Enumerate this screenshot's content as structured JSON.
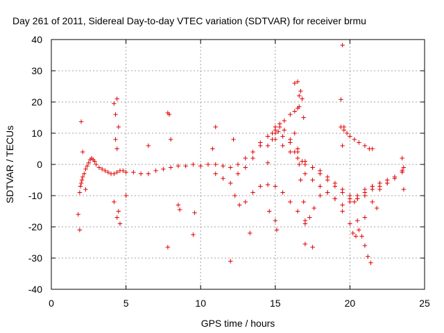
{
  "chart_data": {
    "type": "scatter",
    "title": "Day 261 of 2011, Sidereal Day-to-day VTEC variation (SDTVAR) for receiver brmu",
    "xlabel": "GPS time / hours",
    "ylabel": "SDTVAR / TECUs",
    "xlim": [
      0,
      25
    ],
    "ylim": [
      -40,
      40
    ],
    "xticks": [
      0,
      5,
      10,
      15,
      20,
      25
    ],
    "yticks": [
      -40,
      -30,
      -20,
      -10,
      0,
      10,
      20,
      30,
      40
    ],
    "grid": true,
    "marker": "+",
    "color": "#e00000",
    "series": [
      {
        "name": "SDTVAR",
        "x": [
          1.9,
          1.95,
          2.0,
          2.05,
          2.1,
          2.2,
          2.3,
          2.4,
          2.5,
          2.6,
          2.7,
          2.8,
          2.9,
          3.0,
          3.2,
          3.4,
          3.6,
          3.8,
          4.0,
          4.2,
          4.4,
          4.6,
          4.8,
          5.0,
          5.5,
          6.0,
          6.5,
          7.0,
          7.5,
          8.0,
          8.5,
          9.0,
          9.5,
          10.0,
          10.5,
          11.0,
          11.5,
          12.0,
          12.5,
          13.0,
          13.5,
          14.0,
          14.5,
          14.8,
          15.0,
          15.2,
          15.5,
          16.0,
          16.5,
          17.0,
          17.5,
          18.0,
          18.5,
          19.0,
          19.5,
          20.0,
          20.3,
          20.5,
          21.0,
          21.5,
          22.0,
          22.5,
          23.0,
          23.5,
          23.6
        ],
        "y": [
          -9,
          -7,
          -6,
          -5,
          -4,
          -3,
          -1.5,
          -0.5,
          0.5,
          1.5,
          2.0,
          1.5,
          1.0,
          0,
          -1.0,
          -1.5,
          -2.0,
          -2.5,
          -3.0,
          -3.0,
          -2.5,
          -2.0,
          -2.0,
          -2.5,
          -2.5,
          -3.0,
          -3.0,
          -2.0,
          -1.5,
          -1.0,
          -0.5,
          -0.5,
          0,
          -0.5,
          0,
          0,
          -0.5,
          -1.0,
          0,
          2.0,
          4.0,
          7.0,
          9.0,
          10.0,
          11.0,
          10.5,
          9.0,
          7.0,
          4.0,
          1.0,
          -1.0,
          -3.0,
          -5.0,
          -7.0,
          -9.0,
          -11.0,
          -12.0,
          -11.0,
          -9.0,
          -7.0,
          -6.0,
          -5.0,
          -4.0,
          -2.0,
          -1.0
        ]
      },
      {
        "name": "SDTVAR",
        "x": [
          11.0,
          11.5,
          12.0,
          12.3,
          12.6,
          13.0,
          13.5,
          14.0,
          14.5,
          15.0,
          15.5,
          16.0,
          16.5,
          17.0,
          17.3,
          17.6,
          18.0,
          18.5,
          19.0,
          19.5,
          20.0,
          20.2,
          20.4,
          20.6,
          21.0,
          21.5,
          22.0,
          22.5,
          23.0,
          23.5
        ],
        "y": [
          -3.0,
          -4.5,
          -6.0,
          -10.0,
          -13.0,
          -12.0,
          -9.0,
          -7.0,
          -6.5,
          -7.0,
          -9.0,
          -12.0,
          -15.0,
          -18.0,
          -17.0,
          -14.0,
          -10.0,
          -9.0,
          -11.0,
          -15.0,
          -19.0,
          -22.0,
          -23.0,
          -21.0,
          -17.0,
          -12.0,
          -8.0,
          -6.0,
          -4.0,
          -2.0
        ]
      },
      {
        "name": "SDTVAR",
        "x": [
          12.5,
          13.0,
          13.5,
          14.0,
          14.5,
          15.0,
          15.3,
          15.6,
          16.0,
          16.3,
          16.6,
          17.0,
          17.5,
          18.0,
          18.5,
          19.0,
          19.5,
          20.0,
          20.5,
          21.0,
          21.5,
          22.0
        ],
        "y": [
          -3.0,
          -1.0,
          2.0,
          6.0,
          9.0,
          12.0,
          13.0,
          11.0,
          8.0,
          4.0,
          0,
          -3.0,
          -5.0,
          -7.0,
          -9.0,
          -11.0,
          -13.0,
          -12.0,
          -10.0,
          -8.0,
          -7.0,
          -6.0
        ]
      },
      {
        "name": "SDTVAR",
        "x": [
          14.5,
          14.8,
          15.0,
          15.3,
          15.6,
          16.0,
          16.3,
          16.5,
          16.6
        ],
        "y": [
          6.0,
          8.0,
          10.0,
          12.0,
          14.0,
          16.0,
          17.0,
          18.0,
          18.5
        ]
      },
      {
        "name": "SDTVAR",
        "x": [
          15.0,
          15.5,
          16.0,
          16.5,
          16.8,
          17.0,
          17.5,
          18.0,
          18.5,
          19.0,
          19.5,
          20.0,
          20.5,
          21.0,
          21.5,
          22.0,
          22.5,
          23.0,
          23.5
        ],
        "y": [
          8.0,
          6.0,
          4.0,
          2.0,
          1.0,
          0,
          -1.0,
          -2.0,
          -4.0,
          -6.0,
          -8.0,
          -10.0,
          -11.0,
          -10.0,
          -8.0,
          -7.0,
          -6.0,
          -4.5,
          -2.5
        ]
      },
      {
        "name": "SDTVAR",
        "x": [
          16.3,
          16.5,
          16.7,
          16.9,
          17.0
        ],
        "y": [
          10.0,
          5.0,
          -5.0,
          -12.0,
          -19.0
        ]
      },
      {
        "name": "SDTVAR",
        "x": [
          19.4,
          19.6,
          19.8,
          20.0,
          20.3,
          20.6,
          21.0,
          21.3,
          21.5
        ],
        "y": [
          12.0,
          11.0,
          10.0,
          9.0,
          8.0,
          7.0,
          6.0,
          5.0,
          5.0
        ]
      },
      {
        "name": "SDTVAR",
        "x": [
          2.0,
          2.1,
          1.8,
          1.9,
          4.2,
          4.3,
          4.4,
          4.5,
          4.5,
          4.6,
          4.3,
          4.4,
          4.2,
          4.4,
          7.8,
          7.9,
          7.8,
          8.5,
          8.6,
          9.6,
          9.5,
          10.8,
          11.0,
          12.0,
          12.2,
          13.3,
          14.5,
          14.6,
          15.0,
          15.1,
          16.3,
          16.5,
          16.6,
          16.7,
          16.8,
          16.9,
          17.0,
          17.5,
          19.5,
          19.6,
          19.4,
          19.5,
          20.5,
          20.8,
          21.0,
          21.2,
          21.4,
          21.8,
          23.5,
          23.6,
          6.5,
          2.3,
          5.0,
          8.0
        ],
        "y": [
          13.7,
          4.0,
          -16.0,
          -21.0,
          19.5,
          16.0,
          21.0,
          12.0,
          -15.0,
          -19.0,
          8.0,
          5.0,
          -12.0,
          -17.0,
          16.5,
          16.0,
          -26.5,
          -13.0,
          -14.5,
          -15.5,
          -22.5,
          5.0,
          12.0,
          -31.0,
          8.0,
          -22.0,
          0.5,
          -15.0,
          -18.0,
          -21.0,
          26.0,
          26.5,
          22.0,
          23.5,
          21.0,
          15.0,
          -25.5,
          -26.5,
          38.2,
          12.0,
          20.8,
          6.0,
          -18.0,
          -23.0,
          -26.0,
          -29.5,
          -31.5,
          -14.0,
          2.0,
          -8.0,
          6.0,
          -8.0,
          -10.0,
          8.0
        ]
      }
    ]
  }
}
